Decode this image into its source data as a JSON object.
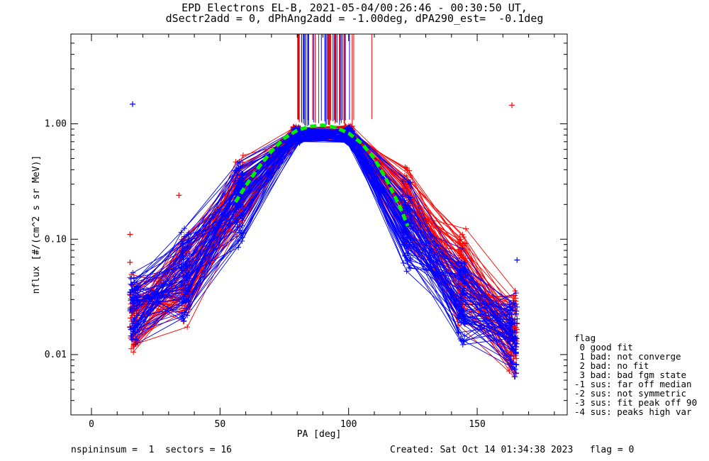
{
  "title": {
    "line1": "EPD Electrons EL-B, 2021-05-04/00:26:46 - 00:30:50 UT,",
    "line2": "dSectr2add = 0, dPhAng2add = -1.00deg, dPA290_est=  -0.1deg"
  },
  "footer": {
    "left": "nspininsum =  1  sectors = 16",
    "right": "Created: Sat Oct 14 01:34:38 2023   flag = 0"
  },
  "legend": {
    "title": "flag",
    "items": [
      " 0 good fit",
      " 1 bad: not converge",
      " 2 bad: no fit",
      " 3 bad: bad fgm state",
      "-1 sus: far off median",
      "-2 sus: not symmetric",
      "-3 sus: fit peak off 90",
      "-4 sus: peaks high var"
    ]
  },
  "chart_data": {
    "type": "line",
    "title": "EPD Electrons EL-B, 2021-05-04/00:26:46 - 00:30:50 UT, dSectr2add = 0, dPhAng2add = -1.00deg, dPA290_est=  -0.1deg",
    "xlabel": "PA [deg]",
    "ylabel": "nflux [#/(cm^2 s sr MeV)]",
    "xlim": [
      -8,
      185
    ],
    "ylim": [
      0.003,
      6
    ],
    "yscale": "log",
    "xticks": [
      0,
      50,
      100,
      150
    ],
    "xtick_labels": [
      "0",
      "50",
      "100",
      "150"
    ],
    "yticks": [
      0.01,
      0.1,
      1.0
    ],
    "ytick_labels": [
      "0.01",
      "0.10",
      "1.00"
    ],
    "grid": false,
    "colors": {
      "series_red": "#ff0000",
      "series_blue": "#0000ff",
      "fit": "#00ee00"
    },
    "pa_bins": [
      16.5,
      36.5,
      57.5,
      80,
      100,
      122.5,
      144,
      164
    ],
    "series": [
      {
        "name": "red",
        "color": "#ff0000",
        "x": [
          16.5,
          36.5,
          57.5,
          80,
          100,
          122.5,
          144,
          164
        ],
        "median_y": [
          0.022,
          0.045,
          0.25,
          0.82,
          0.82,
          0.2,
          0.05,
          0.016
        ]
      },
      {
        "name": "blue",
        "color": "#0000ff",
        "x": [
          16.5,
          36.5,
          57.5,
          80,
          100,
          122.5,
          144,
          164
        ],
        "median_y": [
          0.025,
          0.05,
          0.2,
          0.8,
          0.8,
          0.13,
          0.03,
          0.015
        ]
      },
      {
        "name": "fit",
        "color": "#00ee00",
        "style": "dashed",
        "x": [
          56,
          60,
          65,
          70,
          75,
          80,
          85,
          90,
          95,
          100,
          105,
          110,
          115,
          120,
          123
        ],
        "y": [
          0.21,
          0.29,
          0.42,
          0.58,
          0.75,
          0.88,
          0.95,
          0.97,
          0.93,
          0.83,
          0.68,
          0.5,
          0.32,
          0.19,
          0.13
        ]
      }
    ],
    "outliers": [
      {
        "x": 16,
        "y": 1.48,
        "color": "blue"
      },
      {
        "x": 163.5,
        "y": 1.45,
        "color": "red"
      },
      {
        "x": 15,
        "y": 0.11,
        "color": "red"
      },
      {
        "x": 15,
        "y": 0.063,
        "color": "red"
      },
      {
        "x": 34,
        "y": 0.24,
        "color": "red"
      },
      {
        "x": 122,
        "y": 0.42,
        "color": "red"
      },
      {
        "x": 165.5,
        "y": 0.066,
        "color": "blue"
      }
    ]
  }
}
